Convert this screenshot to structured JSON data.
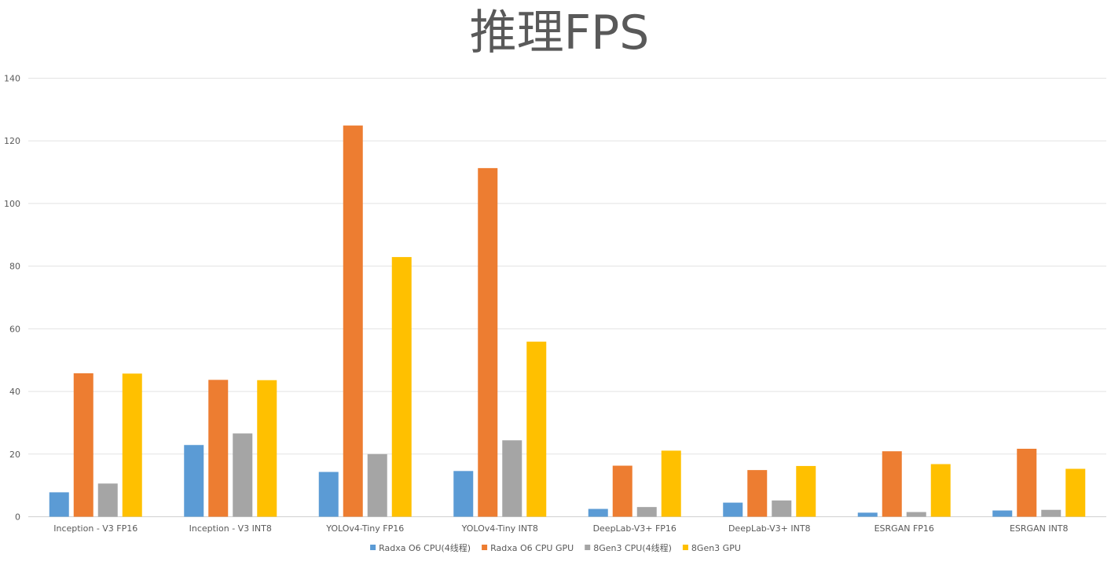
{
  "chart_data": {
    "type": "bar",
    "title": "推理FPS",
    "xlabel": "",
    "ylabel": "",
    "ylim": [
      0,
      140
    ],
    "yticks": [
      0,
      20,
      40,
      60,
      80,
      100,
      120,
      140
    ],
    "grid": true,
    "legend_position": "bottom",
    "categories": [
      "Inception - V3 FP16",
      "Inception - V3 INT8",
      "YOLOv4-Tiny FP16",
      "YOLOv4-Tiny INT8",
      "DeepLab-V3+ FP16",
      "DeepLab-V3+ INT8",
      "ESRGAN FP16",
      "ESRGAN INT8"
    ],
    "series": [
      {
        "name": "Radxa O6 CPU(4线程)",
        "color": "#5B9BD5",
        "values": [
          7.8,
          22.9,
          14.3,
          14.6,
          2.5,
          4.5,
          1.3,
          2.0
        ]
      },
      {
        "name": "Radxa O6 CPU GPU",
        "color": "#ED7D31",
        "values": [
          45.8,
          43.7,
          124.9,
          111.3,
          16.3,
          14.9,
          20.9,
          21.7
        ]
      },
      {
        "name": "8Gen3 CPU(4线程)",
        "color": "#A5A5A5",
        "values": [
          10.6,
          26.6,
          20.0,
          24.4,
          3.1,
          5.2,
          1.5,
          2.2
        ]
      },
      {
        "name": "8Gen3 GPU",
        "color": "#FFC000",
        "values": [
          45.7,
          43.6,
          82.9,
          55.9,
          21.1,
          16.2,
          16.8,
          15.3
        ]
      }
    ]
  }
}
